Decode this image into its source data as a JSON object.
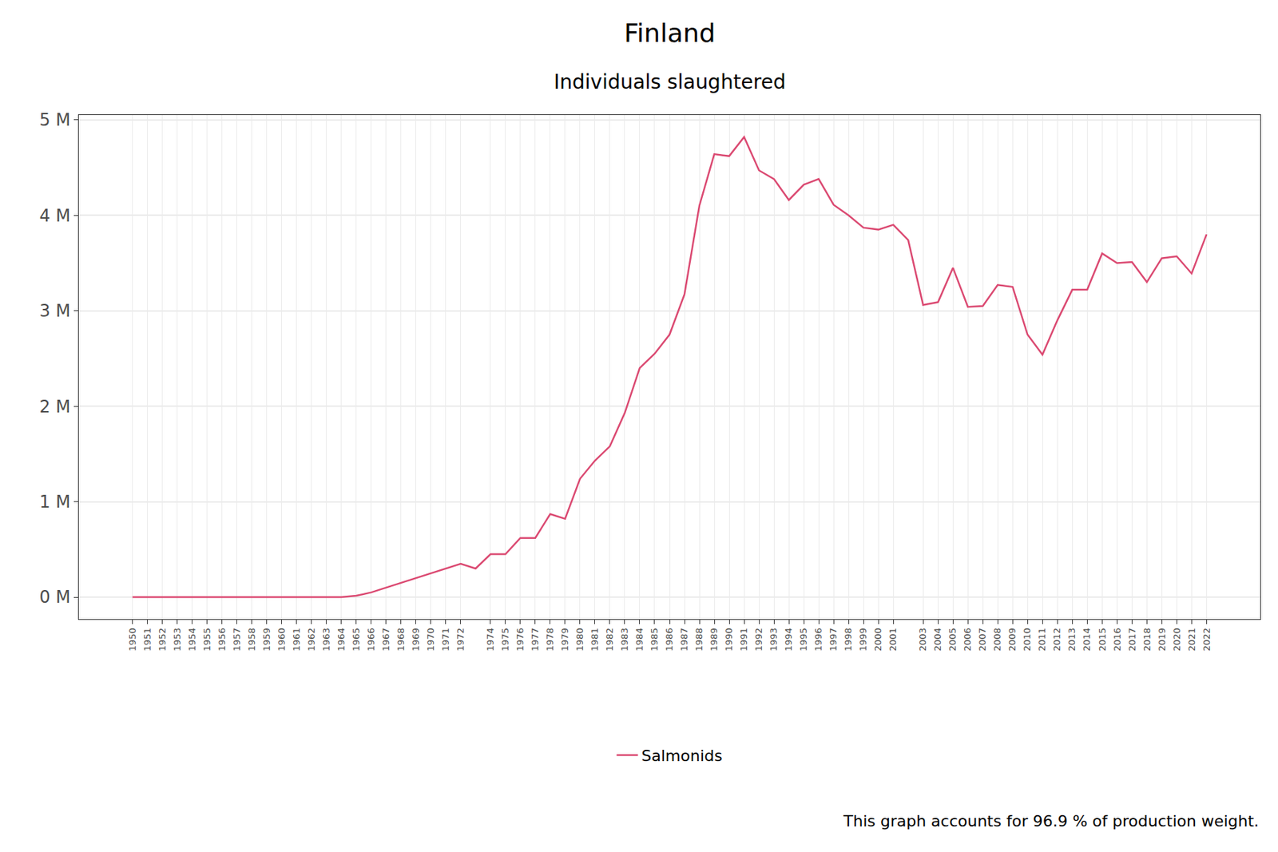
{
  "chart_data": {
    "type": "line",
    "title": "Finland",
    "subtitle": "Individuals slaughtered",
    "caption": "This graph accounts for 96.9 % of production weight.",
    "x": [
      1950,
      1951,
      1952,
      1953,
      1954,
      1955,
      1956,
      1957,
      1958,
      1959,
      1960,
      1961,
      1962,
      1963,
      1964,
      1965,
      1966,
      1967,
      1968,
      1969,
      1970,
      1971,
      1972,
      1973,
      1974,
      1975,
      1976,
      1977,
      1978,
      1979,
      1980,
      1981,
      1982,
      1983,
      1984,
      1985,
      1986,
      1987,
      1988,
      1989,
      1990,
      1991,
      1992,
      1993,
      1994,
      1995,
      1996,
      1997,
      1998,
      1999,
      2000,
      2001,
      2002,
      2003,
      2004,
      2005,
      2006,
      2007,
      2008,
      2009,
      2010,
      2011,
      2012,
      2013,
      2014,
      2015,
      2016,
      2017,
      2018,
      2019,
      2020,
      2021,
      2022
    ],
    "series": [
      {
        "name": "Salmonids",
        "color": "#db4a72",
        "values": [
          0,
          0,
          0,
          0,
          0,
          0,
          0,
          0,
          0,
          0,
          0,
          0,
          0,
          0,
          0,
          15000,
          50000,
          100000,
          150000,
          200000,
          250000,
          300000,
          350000,
          300000,
          450000,
          450000,
          620000,
          620000,
          870000,
          820000,
          1240000,
          1430000,
          1580000,
          1930000,
          2400000,
          2550000,
          2750000,
          3170000,
          4100000,
          4640000,
          4620000,
          4820000,
          4470000,
          4380000,
          4160000,
          4320000,
          4380000,
          4110000,
          4000000,
          3870000,
          3850000,
          3900000,
          3740000,
          3060000,
          3090000,
          3450000,
          3040000,
          3050000,
          3270000,
          3250000,
          2750000,
          2540000,
          2900000,
          3220000,
          3220000,
          3600000,
          3500000,
          3510000,
          3300000,
          3550000,
          3570000,
          3390000,
          3800000
        ]
      }
    ],
    "xlim": [
      1946.4,
      2025.6
    ],
    "xticks": [
      1950,
      1951,
      1952,
      1953,
      1954,
      1955,
      1956,
      1957,
      1958,
      1959,
      1960,
      1961,
      1962,
      1963,
      1964,
      1965,
      1966,
      1967,
      1968,
      1969,
      1970,
      1971,
      1972,
      1974,
      1975,
      1976,
      1977,
      1978,
      1979,
      1980,
      1981,
      1982,
      1983,
      1984,
      1985,
      1986,
      1987,
      1988,
      1989,
      1990,
      1991,
      1992,
      1993,
      1994,
      1995,
      1996,
      1997,
      1998,
      1999,
      2000,
      2001,
      2003,
      2004,
      2005,
      2006,
      2007,
      2008,
      2009,
      2010,
      2011,
      2012,
      2013,
      2014,
      2015,
      2016,
      2017,
      2018,
      2019,
      2020,
      2021,
      2022
    ],
    "ylim": [
      -230000,
      5050000
    ],
    "yticks": [
      {
        "value": 0,
        "label": "0 M"
      },
      {
        "value": 1000000,
        "label": "1 M"
      },
      {
        "value": 2000000,
        "label": "2 M"
      },
      {
        "value": 3000000,
        "label": "3 M"
      },
      {
        "value": 4000000,
        "label": "4 M"
      },
      {
        "value": 5000000,
        "label": "5 M"
      }
    ],
    "grid": true,
    "legend": "bottom"
  }
}
